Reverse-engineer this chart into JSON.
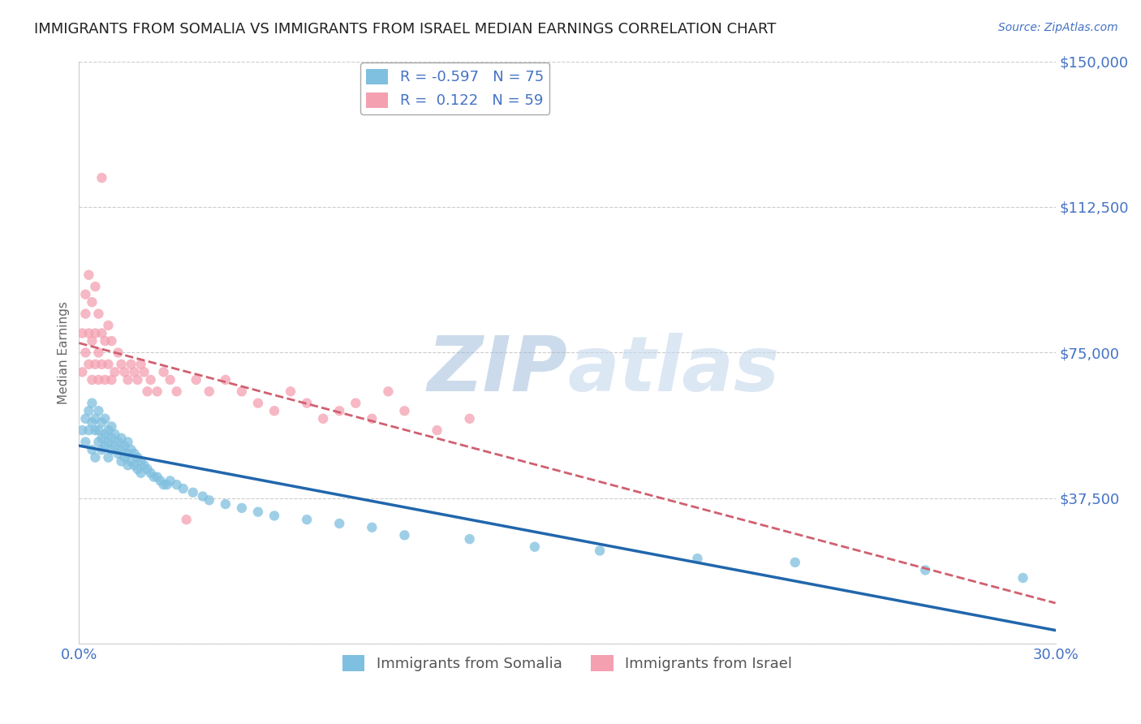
{
  "title": "IMMIGRANTS FROM SOMALIA VS IMMIGRANTS FROM ISRAEL MEDIAN EARNINGS CORRELATION CHART",
  "source": "Source: ZipAtlas.com",
  "ylabel": "Median Earnings",
  "xlim": [
    0.0,
    0.3
  ],
  "ylim": [
    0,
    150000
  ],
  "yticks": [
    0,
    37500,
    75000,
    112500,
    150000
  ],
  "ytick_labels": [
    "",
    "$37,500",
    "$75,000",
    "$112,500",
    "$150,000"
  ],
  "xticks": [
    0.0,
    0.05,
    0.1,
    0.15,
    0.2,
    0.25,
    0.3
  ],
  "xtick_labels": [
    "0.0%",
    "",
    "",
    "",
    "",
    "",
    "30.0%"
  ],
  "somalia_R": -0.597,
  "somalia_N": 75,
  "israel_R": 0.122,
  "israel_N": 59,
  "somalia_color": "#7fbfdf",
  "israel_color": "#f4a0b0",
  "trend_somalia_color": "#2166ac",
  "trend_israel_color": "#d06070",
  "label_color": "#4472c4",
  "background_color": "#ffffff",
  "grid_color": "#cccccc",
  "watermark_color_zip": "#9ab8d8",
  "watermark_color_atlas": "#c5d8ed",
  "somalia_x": [
    0.001,
    0.002,
    0.002,
    0.003,
    0.003,
    0.004,
    0.004,
    0.004,
    0.005,
    0.005,
    0.005,
    0.006,
    0.006,
    0.006,
    0.007,
    0.007,
    0.007,
    0.008,
    0.008,
    0.008,
    0.009,
    0.009,
    0.009,
    0.01,
    0.01,
    0.01,
    0.011,
    0.011,
    0.012,
    0.012,
    0.013,
    0.013,
    0.013,
    0.014,
    0.014,
    0.015,
    0.015,
    0.015,
    0.016,
    0.016,
    0.017,
    0.017,
    0.018,
    0.018,
    0.019,
    0.019,
    0.02,
    0.021,
    0.022,
    0.023,
    0.024,
    0.025,
    0.026,
    0.027,
    0.028,
    0.03,
    0.032,
    0.035,
    0.038,
    0.04,
    0.045,
    0.05,
    0.055,
    0.06,
    0.07,
    0.08,
    0.09,
    0.1,
    0.12,
    0.14,
    0.16,
    0.19,
    0.22,
    0.26,
    0.29
  ],
  "somalia_y": [
    55000,
    58000,
    52000,
    60000,
    55000,
    62000,
    57000,
    50000,
    58000,
    55000,
    48000,
    60000,
    55000,
    52000,
    57000,
    53000,
    50000,
    58000,
    54000,
    51000,
    55000,
    52000,
    48000,
    56000,
    53000,
    50000,
    54000,
    51000,
    52000,
    49000,
    53000,
    50000,
    47000,
    51000,
    48000,
    52000,
    49000,
    46000,
    50000,
    47000,
    49000,
    46000,
    48000,
    45000,
    47000,
    44000,
    46000,
    45000,
    44000,
    43000,
    43000,
    42000,
    41000,
    41000,
    42000,
    41000,
    40000,
    39000,
    38000,
    37000,
    36000,
    35000,
    34000,
    33000,
    32000,
    31000,
    30000,
    28000,
    27000,
    25000,
    24000,
    22000,
    21000,
    19000,
    17000
  ],
  "israel_x": [
    0.001,
    0.001,
    0.002,
    0.002,
    0.002,
    0.003,
    0.003,
    0.003,
    0.004,
    0.004,
    0.004,
    0.005,
    0.005,
    0.005,
    0.006,
    0.006,
    0.006,
    0.007,
    0.007,
    0.007,
    0.008,
    0.008,
    0.009,
    0.009,
    0.01,
    0.01,
    0.011,
    0.012,
    0.013,
    0.014,
    0.015,
    0.016,
    0.017,
    0.018,
    0.019,
    0.02,
    0.021,
    0.022,
    0.024,
    0.026,
    0.028,
    0.03,
    0.033,
    0.036,
    0.04,
    0.045,
    0.05,
    0.055,
    0.06,
    0.065,
    0.07,
    0.075,
    0.08,
    0.085,
    0.09,
    0.095,
    0.1,
    0.11,
    0.12
  ],
  "israel_y": [
    70000,
    80000,
    75000,
    85000,
    90000,
    72000,
    80000,
    95000,
    68000,
    78000,
    88000,
    72000,
    80000,
    92000,
    68000,
    75000,
    85000,
    120000,
    72000,
    80000,
    68000,
    78000,
    72000,
    82000,
    68000,
    78000,
    70000,
    75000,
    72000,
    70000,
    68000,
    72000,
    70000,
    68000,
    72000,
    70000,
    65000,
    68000,
    65000,
    70000,
    68000,
    65000,
    32000,
    68000,
    65000,
    68000,
    65000,
    62000,
    60000,
    65000,
    62000,
    58000,
    60000,
    62000,
    58000,
    65000,
    60000,
    55000,
    58000
  ],
  "title_fontsize": 13,
  "source_fontsize": 10,
  "legend_fontsize": 13,
  "axis_label_fontsize": 11,
  "tick_fontsize": 13
}
